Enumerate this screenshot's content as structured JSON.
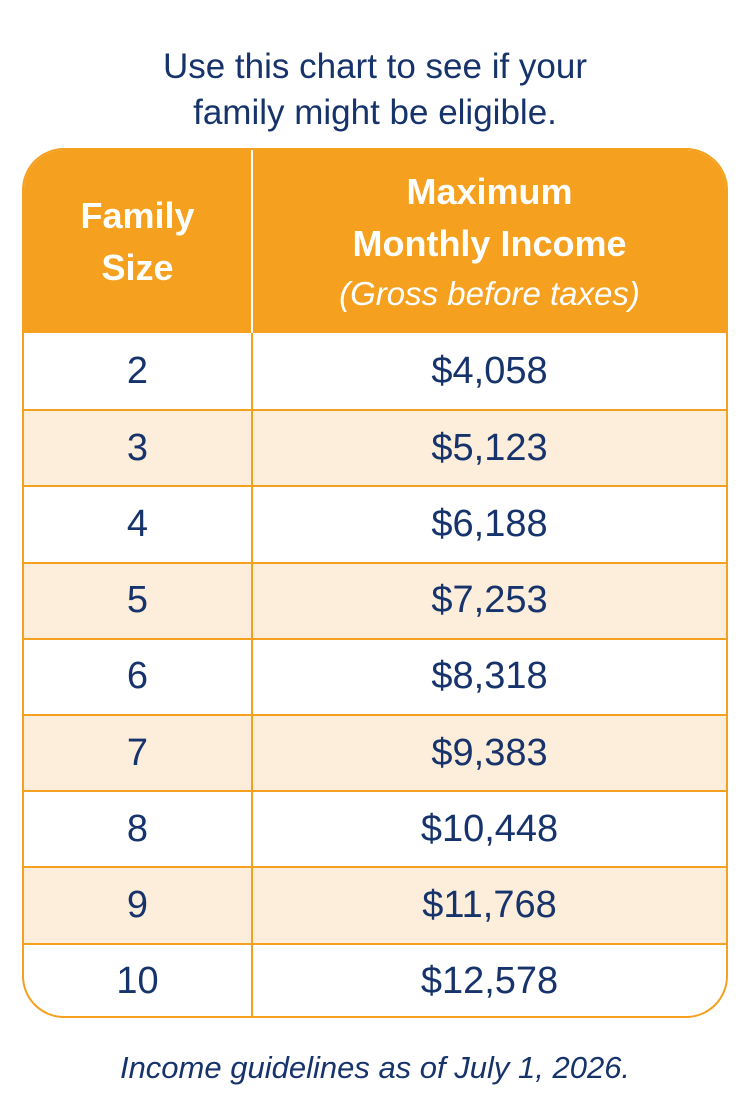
{
  "intro": {
    "line1": "Use this chart to see if your",
    "line2": "family might be eligible."
  },
  "table": {
    "header": {
      "size_line1": "Family",
      "size_line2": "Size",
      "income_line1": "Maximum",
      "income_line2": "Monthly Income",
      "income_note": "(Gross before taxes)"
    },
    "rows": [
      {
        "size": "2",
        "income": "$4,058"
      },
      {
        "size": "3",
        "income": "$5,123"
      },
      {
        "size": "4",
        "income": "$6,188"
      },
      {
        "size": "5",
        "income": "$7,253"
      },
      {
        "size": "6",
        "income": "$8,318"
      },
      {
        "size": "7",
        "income": "$9,383"
      },
      {
        "size": "8",
        "income": "$10,448"
      },
      {
        "size": "9",
        "income": "$11,768"
      },
      {
        "size": "10",
        "income": "$12,578"
      }
    ]
  },
  "footnote": "Income guidelines as of July 1, 2026.",
  "colors": {
    "accent_orange": "#f5a01e",
    "navy_text": "#17336b",
    "alt_row": "#fdeedb"
  }
}
